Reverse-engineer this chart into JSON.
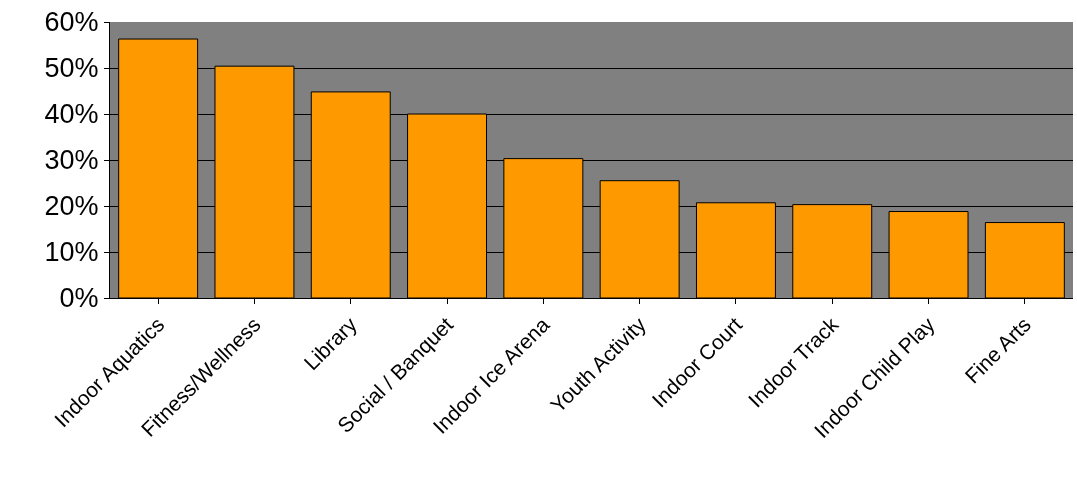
{
  "chart_data": {
    "type": "bar",
    "categories": [
      "Indoor Aquatics",
      "Fitness/Wellness",
      "Library",
      "Social / Banquet",
      "Indoor Ice Arena",
      "Youth Activity",
      "Indoor Court",
      "Indoor Track",
      "Indoor Child Play",
      "Fine Arts"
    ],
    "values": [
      56.3,
      50.4,
      44.8,
      40.0,
      30.3,
      25.5,
      20.7,
      20.3,
      18.8,
      16.4
    ],
    "color": "#ff9900",
    "ylim": [
      0,
      60
    ],
    "yticks": [
      {
        "value": 0,
        "label": "0%"
      },
      {
        "value": 10,
        "label": "10%"
      },
      {
        "value": 20,
        "label": "20%"
      },
      {
        "value": 30,
        "label": "30%"
      },
      {
        "value": 40,
        "label": "40%"
      },
      {
        "value": 50,
        "label": "50%"
      },
      {
        "value": 60,
        "label": "60%"
      }
    ],
    "grid": "y"
  }
}
